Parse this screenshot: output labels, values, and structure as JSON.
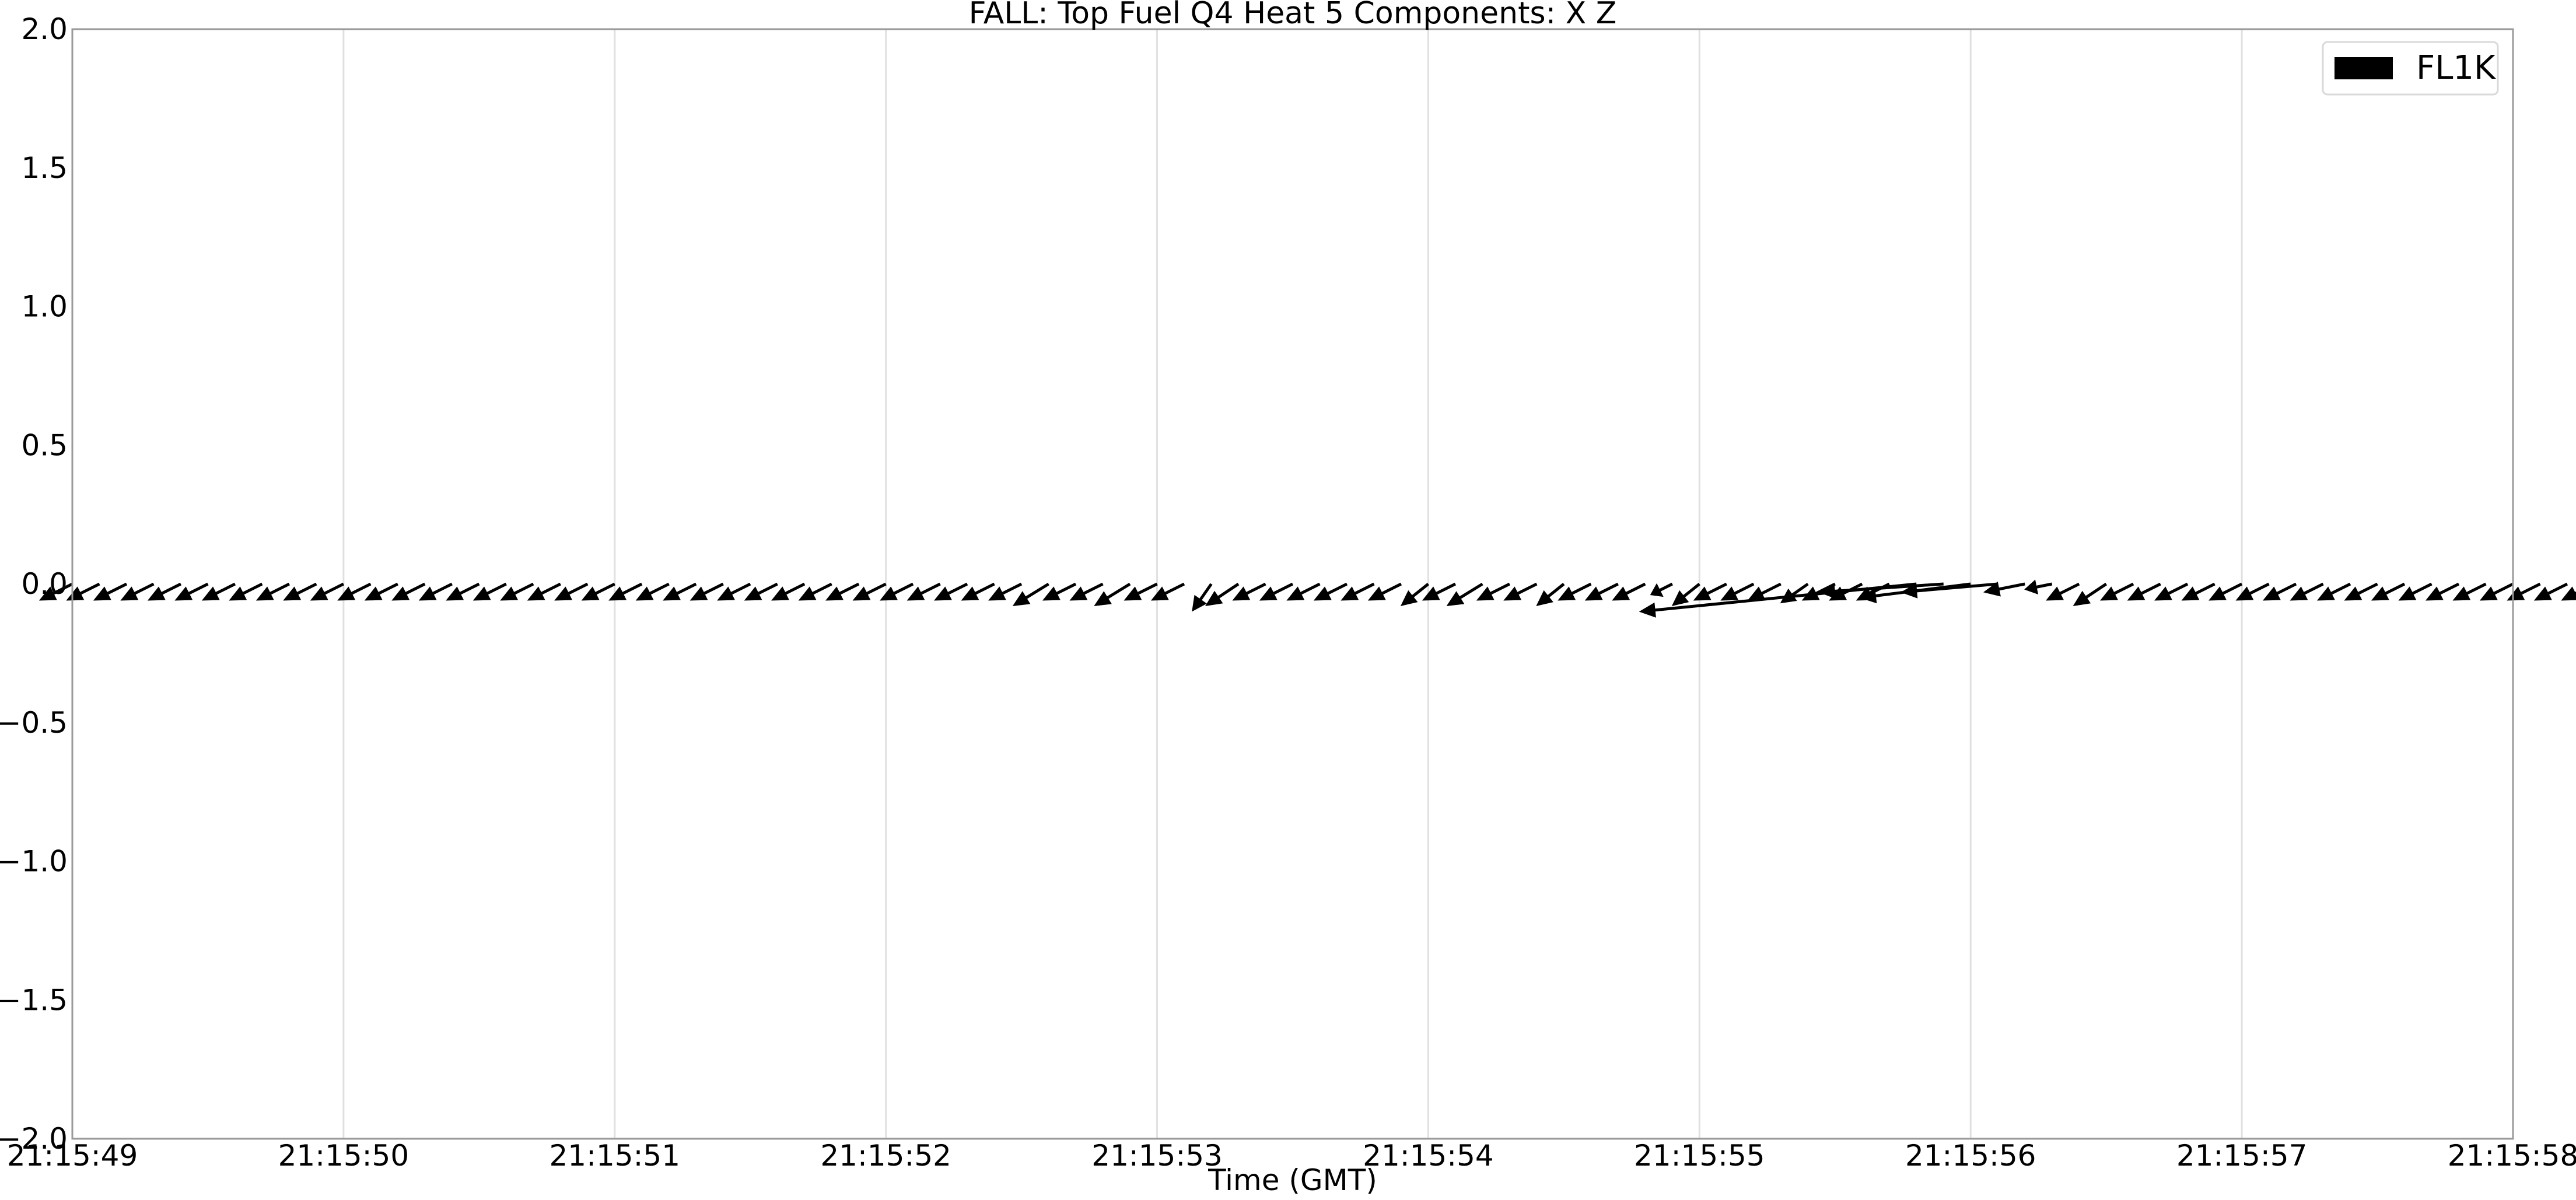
{
  "chart_data": {
    "type": "quiver",
    "title": "FALL: Top Fuel Q4 Heat 5 Components: X Z",
    "xlabel": "Time (GMT)",
    "ylabel": "",
    "ylim": [
      -2.0,
      2.0
    ],
    "xlim": [
      "21:15:49",
      "21:15:58"
    ],
    "x_tick_labels": [
      "21:15:49",
      "21:15:50",
      "21:15:51",
      "21:15:52",
      "21:15:53",
      "21:15:54",
      "21:15:55",
      "21:15:56",
      "21:15:57",
      "21:15:58"
    ],
    "y_tick_labels": [
      "2.0",
      "1.5",
      "1.0",
      "0.5",
      "0.0",
      "−0.5",
      "−1.0",
      "−1.5",
      "−2.0"
    ],
    "y_ticks": [
      2.0,
      1.5,
      1.0,
      0.5,
      0.0,
      -0.5,
      -1.0,
      -1.5,
      -2.0
    ],
    "grid": "vertical",
    "legend": {
      "placement": "top-right",
      "entries": [
        {
          "name": "FL1K",
          "color": "#000000"
        }
      ]
    },
    "series": [
      {
        "name": "FL1K",
        "color": "#000000",
        "baseline_y": 0.0,
        "t_start": "21:15:49",
        "sample_interval_s": 0.1,
        "components_x": [
          -0.12,
          -0.12,
          -0.12,
          -0.12,
          -0.12,
          -0.12,
          -0.12,
          -0.12,
          -0.12,
          -0.12,
          -0.12,
          -0.12,
          -0.12,
          -0.12,
          -0.12,
          -0.12,
          -0.12,
          -0.12,
          -0.12,
          -0.12,
          -0.12,
          -0.12,
          -0.12,
          -0.12,
          -0.12,
          -0.12,
          -0.12,
          -0.12,
          -0.12,
          -0.12,
          -0.12,
          -0.12,
          -0.12,
          -0.12,
          -0.12,
          -0.12,
          -0.13,
          -0.12,
          -0.12,
          -0.13,
          -0.12,
          -0.12,
          -0.07,
          -0.12,
          -0.12,
          -0.12,
          -0.12,
          -0.12,
          -0.12,
          -0.12,
          -0.1,
          -0.12,
          -0.13,
          -0.12,
          -0.12,
          -0.1,
          -0.12,
          -0.12,
          -0.12,
          -0.08,
          -0.1,
          -0.12,
          -0.12,
          -0.12,
          -0.1,
          -0.12,
          -0.12,
          -0.12,
          -1.0,
          -0.45,
          -0.4,
          -0.35,
          -0.15,
          -0.1,
          -0.12,
          -0.12,
          -0.12,
          -0.12,
          -0.12,
          -0.12,
          -0.12,
          -0.12,
          -0.12,
          -0.12,
          -0.12,
          -0.12,
          -0.12,
          -0.12,
          -0.12,
          -0.12,
          -0.12,
          -0.12,
          -0.12,
          -0.12,
          -0.12,
          -0.12,
          -0.12,
          -0.12,
          -0.12,
          -0.12
        ],
        "components_z": [
          -0.06,
          -0.06,
          -0.06,
          -0.06,
          -0.06,
          -0.06,
          -0.06,
          -0.06,
          -0.06,
          -0.06,
          -0.06,
          -0.06,
          -0.06,
          -0.06,
          -0.06,
          -0.06,
          -0.06,
          -0.06,
          -0.06,
          -0.06,
          -0.06,
          -0.06,
          -0.06,
          -0.06,
          -0.06,
          -0.06,
          -0.06,
          -0.06,
          -0.06,
          -0.06,
          -0.06,
          -0.06,
          -0.06,
          -0.06,
          -0.06,
          -0.06,
          -0.08,
          -0.06,
          -0.06,
          -0.08,
          -0.06,
          -0.06,
          -0.1,
          -0.08,
          -0.06,
          -0.06,
          -0.06,
          -0.06,
          -0.06,
          -0.06,
          -0.08,
          -0.06,
          -0.08,
          -0.06,
          -0.06,
          -0.08,
          -0.06,
          -0.06,
          -0.06,
          -0.04,
          -0.08,
          -0.06,
          -0.06,
          -0.06,
          -0.07,
          -0.06,
          -0.06,
          -0.06,
          -0.1,
          -0.03,
          -0.05,
          -0.03,
          -0.03,
          -0.02,
          -0.06,
          -0.08,
          -0.06,
          -0.06,
          -0.06,
          -0.06,
          -0.06,
          -0.06,
          -0.06,
          -0.06,
          -0.06,
          -0.06,
          -0.06,
          -0.06,
          -0.06,
          -0.06,
          -0.06,
          -0.06,
          -0.06,
          -0.06,
          -0.06,
          -0.06,
          -0.06,
          -0.06,
          -0.06,
          -0.06
        ]
      }
    ]
  }
}
